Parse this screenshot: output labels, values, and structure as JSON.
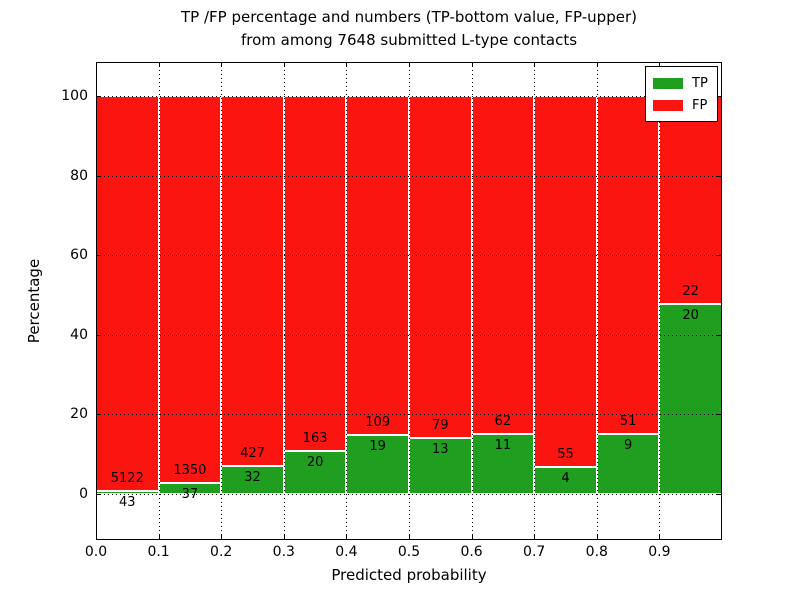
{
  "figure": {
    "title_line1": "TP /FP percentage and numbers (TP-bottom value, FP-upper)",
    "title_line2": "from among 7648 submitted L-type contacts",
    "xlabel": "Predicted probability",
    "ylabel": "Percentage"
  },
  "legend": {
    "position": "upper right",
    "items": [
      {
        "label": "TP",
        "color": "#1f9e1f"
      },
      {
        "label": "FP",
        "color": "#fa1511"
      }
    ]
  },
  "chart_data": {
    "type": "bar",
    "stacked": true,
    "normalized": "each bin scaled to 100%",
    "title": "TP /FP percentage and numbers (TP-bottom value, FP-upper) from among 7648 submitted L-type contacts",
    "xlabel": "Predicted probability",
    "ylabel": "Percentage",
    "total_contacts": 7648,
    "bin_edges": [
      0.0,
      0.1,
      0.2,
      0.3,
      0.4,
      0.5,
      0.6,
      0.7,
      0.8,
      0.9,
      1.0
    ],
    "categories": [
      "0.0-0.1",
      "0.1-0.2",
      "0.2-0.3",
      "0.3-0.4",
      "0.4-0.5",
      "0.5-0.6",
      "0.6-0.7",
      "0.7-0.8",
      "0.8-0.9",
      "0.9-1.0"
    ],
    "series": [
      {
        "name": "TP",
        "color": "#1f9e1f",
        "counts": [
          43,
          37,
          32,
          20,
          19,
          13,
          11,
          4,
          9,
          20
        ]
      },
      {
        "name": "FP",
        "color": "#fa1511",
        "counts": [
          5122,
          1350,
          427,
          163,
          109,
          79,
          62,
          55,
          51,
          22
        ]
      }
    ],
    "xticks": [
      "0.0",
      "0.1",
      "0.2",
      "0.3",
      "0.4",
      "0.5",
      "0.6",
      "0.7",
      "0.8",
      "0.9"
    ],
    "yticks": [
      0,
      20,
      40,
      60,
      80,
      100
    ],
    "ylim_shown_ticks": [
      0,
      100
    ],
    "grid": true,
    "grid_style": "dotted black, drawn above bars",
    "bar_edge_color": "#ffffff",
    "legend_position": "upper right"
  }
}
